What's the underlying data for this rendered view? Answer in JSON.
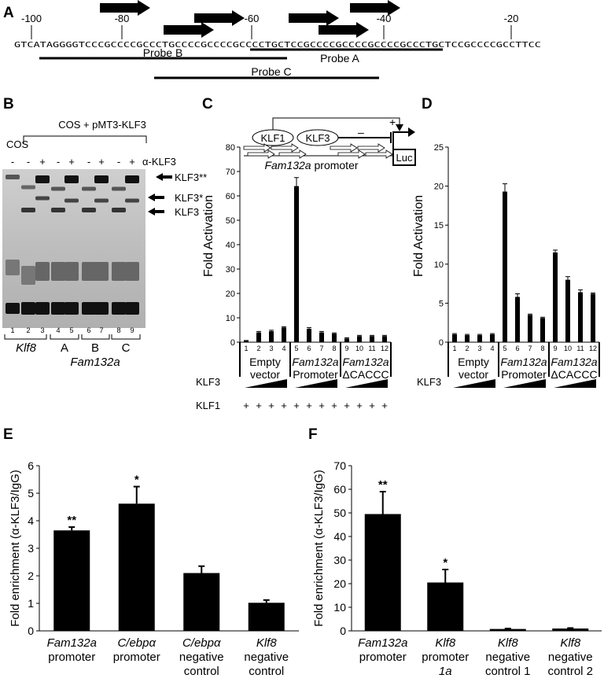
{
  "panel_a": {
    "label": "A",
    "positions": [
      "-100",
      "-80",
      "-60",
      "-40",
      "-20"
    ],
    "sequence": "GTCATAGGGGTCCCGCCCCGCCCTGCCCCGCCCCGCCCCTGCTCCGCCCCGCCCCGCCCCGCCCTGCTCCGCCCCGCCTTCC",
    "probes": [
      "Probe A",
      "Probe B",
      "Probe C"
    ]
  },
  "panel_b": {
    "label": "B",
    "header": "COS + pMT3-KLF3",
    "cos_label": "COS",
    "antibody_label": "α-KLF3",
    "signs": [
      "-",
      "-",
      "+",
      "-",
      "+",
      "-",
      "+",
      "-",
      "+"
    ],
    "band_labels": [
      "KLF3**",
      "KLF3*",
      "KLF3"
    ],
    "lanes": [
      "1",
      "2",
      "3",
      "4",
      "5",
      "6",
      "7",
      "8",
      "9"
    ],
    "groups": [
      "Klf8",
      "A",
      "B",
      "C"
    ],
    "group_bottom": "Fam132a"
  },
  "panel_c": {
    "label": "C",
    "diagram": {
      "factors": [
        "KLF1",
        "KLF3"
      ],
      "minus": "–",
      "plus": "+",
      "reporter": "Luc",
      "promoter_name": "Fam132a",
      "promoter_word": "promoter"
    },
    "rows": {
      "klf3_label": "KLF3",
      "klf1_label": "KLF1",
      "klf1_signs": [
        "+",
        "+",
        "+",
        "+",
        "+",
        "+",
        "+",
        "+",
        "+",
        "+",
        "+",
        "+"
      ]
    }
  },
  "panel_d": {
    "label": "D",
    "klf3_label": "KLF3"
  },
  "panel_e": {
    "label": "E"
  },
  "panel_f": {
    "label": "F"
  },
  "chart_data": [
    {
      "panel": "C",
      "type": "bar",
      "ylabel": "Fold Activation",
      "ylim": [
        0,
        80
      ],
      "yticks": [
        "0",
        "10",
        "20",
        "30",
        "40",
        "50",
        "60",
        "70",
        "80"
      ],
      "lanes": [
        "1",
        "2",
        "3",
        "4",
        "5",
        "6",
        "7",
        "8",
        "9",
        "10",
        "11",
        "12"
      ],
      "values": [
        0.5,
        4,
        4.5,
        6,
        64,
        5.5,
        4,
        3.5,
        1.5,
        2.5,
        2.5,
        2.5
      ],
      "errors": [
        0.2,
        0.4,
        0.4,
        0.3,
        3.5,
        0.5,
        0.4,
        0.3,
        0.3,
        0.3,
        0.3,
        0.3
      ],
      "groups": [
        {
          "line1": "Empty",
          "line2": "vector",
          "italic": false
        },
        {
          "line1": "Fam132a",
          "line2": "Promoter",
          "italic": true
        },
        {
          "line1": "Fam132a",
          "line2": "ΔCACCC",
          "italic": true
        }
      ]
    },
    {
      "panel": "D",
      "type": "bar",
      "ylabel": "Fold Activation",
      "ylim": [
        0,
        25
      ],
      "yticks": [
        "0",
        "5",
        "10",
        "15",
        "20",
        "25"
      ],
      "lanes": [
        "1",
        "2",
        "3",
        "4",
        "5",
        "6",
        "7",
        "8",
        "9",
        "10",
        "11",
        "12"
      ],
      "values": [
        1,
        0.9,
        0.9,
        1,
        19.3,
        5.8,
        3.5,
        3.1,
        11.5,
        8,
        6.4,
        6.2
      ],
      "errors": [
        0.1,
        0.1,
        0.1,
        0.1,
        1,
        0.4,
        0.1,
        0.1,
        0.3,
        0.4,
        0.3,
        0.1
      ],
      "groups": [
        {
          "line1": "Empty",
          "line2": "vector",
          "italic": false
        },
        {
          "line1": "Fam132a",
          "line2": "Promoter",
          "italic": true
        },
        {
          "line1": "Fam132a",
          "line2": "ΔCACCC",
          "italic": true
        }
      ]
    },
    {
      "panel": "E",
      "type": "bar",
      "ylabel": "Fold enrichment (α-KLF3/IgG)",
      "ylim": [
        0,
        6
      ],
      "yticks": [
        "0",
        "1",
        "2",
        "3",
        "4",
        "5",
        "6"
      ],
      "categories": [
        {
          "line1": "Fam132a",
          "line2": "promoter",
          "line3": ""
        },
        {
          "line1": "C/ebpα",
          "line2": "promoter",
          "line3": ""
        },
        {
          "line1": "C/ebpα",
          "line2": "negative",
          "line3": "control"
        },
        {
          "line1": "Klf8",
          "line2": "negative",
          "line3": "control"
        }
      ],
      "values": [
        3.65,
        4.62,
        2.1,
        1.02
      ],
      "errors": [
        0.12,
        0.62,
        0.25,
        0.1
      ],
      "significance": [
        "**",
        "*",
        "",
        ""
      ]
    },
    {
      "panel": "F",
      "type": "bar",
      "ylabel": "Fold enrichment (α-KLF3/IgG)",
      "ylim": [
        0,
        70
      ],
      "yticks": [
        "0",
        "10",
        "20",
        "30",
        "40",
        "50",
        "60",
        "70"
      ],
      "categories": [
        {
          "line1": "Fam132a",
          "line2": "promoter",
          "line3": ""
        },
        {
          "line1": "Klf8",
          "line2": "promoter",
          "line3": "1a"
        },
        {
          "line1": "Klf8",
          "line2": "negative",
          "line3": "control 1"
        },
        {
          "line1": "Klf8",
          "line2": "negative",
          "line3": "control 2"
        }
      ],
      "values": [
        49.5,
        20.5,
        0.8,
        1
      ],
      "errors": [
        9.5,
        5.5,
        0.2,
        0.2
      ],
      "significance": [
        "**",
        "*",
        "",
        ""
      ]
    }
  ]
}
